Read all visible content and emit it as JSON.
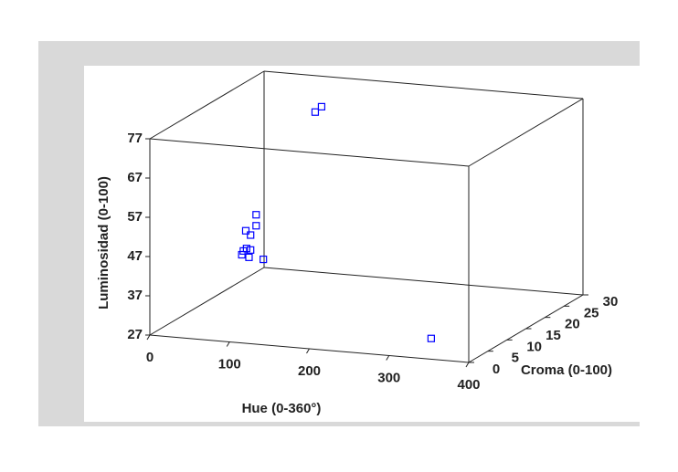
{
  "chart_data": {
    "type": "scatter3d",
    "x_label": "Hue (0-360°)",
    "y_label": "Croma  (0-100)",
    "z_label": "Luminosidad (0-100)",
    "xlim": [
      0,
      400
    ],
    "ylim": [
      0,
      30
    ],
    "zlim": [
      27,
      77
    ],
    "xticks": [
      0,
      100,
      200,
      300,
      400
    ],
    "yticks": [
      0,
      5,
      10,
      15,
      20,
      25,
      30
    ],
    "zticks": [
      27,
      37,
      47,
      57,
      67,
      77
    ],
    "series": [
      {
        "color": "#0000ff",
        "x": [
          88,
          96,
          329,
          119,
          119,
          106,
          112,
          103,
          101,
          107,
          112,
          110,
          128
        ],
        "y": [
          25,
          25,
          5,
          3,
          3,
          3,
          3,
          3,
          3,
          3,
          3,
          3,
          3
        ],
        "z": [
          71,
          72.5,
          29,
          58,
          55.2,
          53.7,
          52.7,
          48.5,
          47.5,
          49.2,
          48.9,
          47,
          46.8
        ]
      }
    ]
  }
}
